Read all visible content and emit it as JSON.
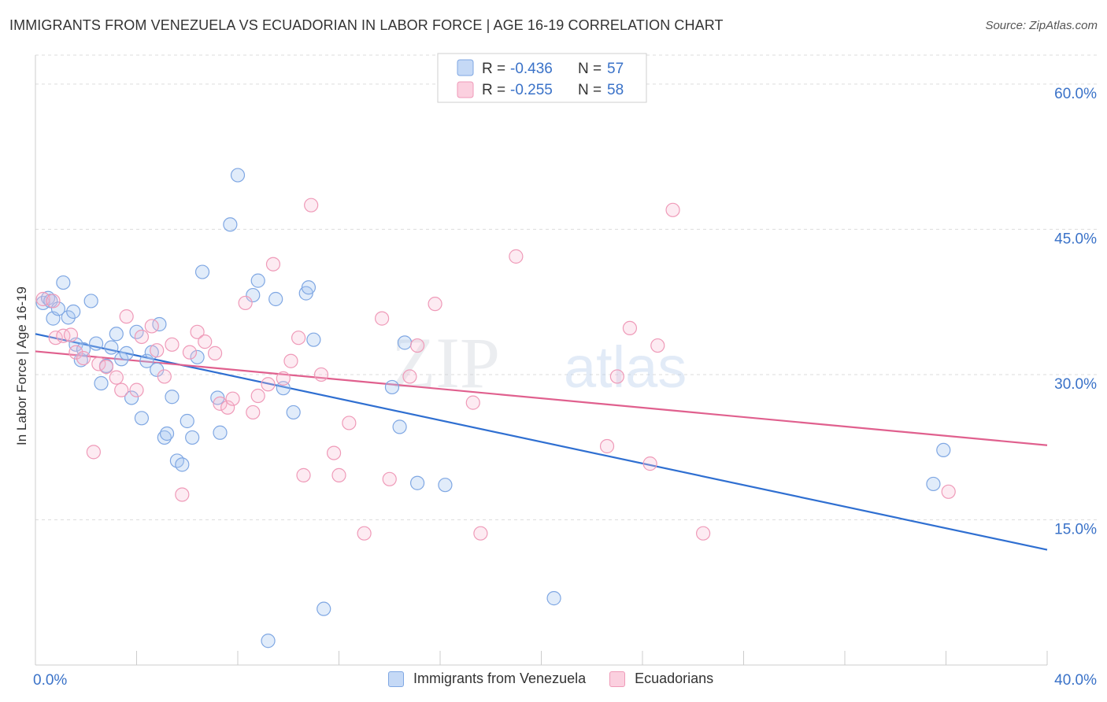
{
  "title": "IMMIGRANTS FROM VENEZUELA VS ECUADORIAN IN LABOR FORCE | AGE 16-19 CORRELATION CHART",
  "source": "Source: ZipAtlas.com",
  "watermark": {
    "zip": "ZIP",
    "atlas": "atlas"
  },
  "colors": {
    "blue": "#6f9fe0",
    "blue_line": "#2f6fd1",
    "pink": "#ee8fb0",
    "pink_line": "#e0608e",
    "tick_text": "#3a72c8",
    "grid": "#dddddd"
  },
  "legend": [
    {
      "r_label": "R = ",
      "r_value": "-0.436",
      "n_label": "N = ",
      "n_value": "57"
    },
    {
      "r_label": "R = ",
      "r_value": "-0.255",
      "n_label": "N = ",
      "n_value": "58"
    }
  ],
  "chart_data": {
    "type": "scatter",
    "title": "IMMIGRANTS FROM VENEZUELA VS ECUADORIAN IN LABOR FORCE | AGE 16-19 CORRELATION CHART",
    "xlabel": "",
    "ylabel": "In Labor Force | Age 16-19",
    "xlim": [
      0,
      40
    ],
    "ylim": [
      0,
      63
    ],
    "x_tick_labels": [
      "0.0%",
      "40.0%"
    ],
    "y_ticks": [
      15,
      30,
      45,
      60
    ],
    "y_tick_labels": [
      "15.0%",
      "30.0%",
      "45.0%",
      "60.0%"
    ],
    "grid": true,
    "legend_position": "top-center",
    "series": [
      {
        "name": "Immigrants from Venezuela",
        "color": "#6f9fe0",
        "trend": {
          "x": [
            0,
            40
          ],
          "y": [
            34.2,
            11.9
          ]
        },
        "points": [
          [
            0.3,
            37.4
          ],
          [
            0.5,
            37.9
          ],
          [
            0.6,
            37.6
          ],
          [
            0.7,
            35.8
          ],
          [
            0.9,
            36.8
          ],
          [
            1.1,
            39.5
          ],
          [
            1.3,
            35.9
          ],
          [
            1.5,
            36.5
          ],
          [
            1.6,
            33.1
          ],
          [
            1.8,
            31.5
          ],
          [
            1.9,
            32.6
          ],
          [
            2.2,
            37.6
          ],
          [
            2.4,
            33.2
          ],
          [
            2.6,
            29.1
          ],
          [
            2.8,
            30.9
          ],
          [
            3.0,
            32.8
          ],
          [
            3.2,
            34.2
          ],
          [
            3.4,
            31.6
          ],
          [
            3.6,
            32.2
          ],
          [
            3.8,
            27.6
          ],
          [
            4.0,
            34.4
          ],
          [
            4.2,
            25.5
          ],
          [
            4.4,
            31.4
          ],
          [
            4.6,
            32.3
          ],
          [
            4.8,
            30.5
          ],
          [
            4.9,
            35.2
          ],
          [
            5.1,
            23.5
          ],
          [
            5.2,
            23.9
          ],
          [
            5.4,
            27.7
          ],
          [
            5.6,
            21.1
          ],
          [
            5.8,
            20.7
          ],
          [
            6.0,
            25.2
          ],
          [
            6.2,
            23.5
          ],
          [
            6.4,
            31.8
          ],
          [
            6.6,
            40.6
          ],
          [
            7.2,
            27.6
          ],
          [
            7.3,
            24.0
          ],
          [
            7.7,
            45.5
          ],
          [
            8.0,
            50.6
          ],
          [
            8.6,
            38.2
          ],
          [
            8.8,
            39.7
          ],
          [
            9.2,
            2.5
          ],
          [
            9.5,
            37.8
          ],
          [
            9.8,
            28.6
          ],
          [
            10.2,
            26.1
          ],
          [
            10.7,
            38.4
          ],
          [
            10.8,
            39.0
          ],
          [
            11.0,
            33.6
          ],
          [
            11.4,
            5.8
          ],
          [
            14.1,
            28.7
          ],
          [
            14.4,
            24.6
          ],
          [
            14.6,
            33.3
          ],
          [
            15.1,
            18.8
          ],
          [
            16.2,
            18.6
          ],
          [
            20.5,
            6.9
          ],
          [
            35.5,
            18.7
          ],
          [
            35.9,
            22.2
          ]
        ]
      },
      {
        "name": "Ecuadorians",
        "color": "#ee8fb0",
        "trend": {
          "x": [
            0,
            40
          ],
          "y": [
            32.4,
            22.7
          ]
        },
        "points": [
          [
            0.3,
            37.8
          ],
          [
            0.7,
            37.6
          ],
          [
            0.8,
            33.8
          ],
          [
            1.1,
            34.0
          ],
          [
            1.4,
            34.1
          ],
          [
            1.6,
            32.3
          ],
          [
            1.9,
            31.7
          ],
          [
            2.3,
            22.0
          ],
          [
            2.5,
            31.1
          ],
          [
            2.8,
            30.8
          ],
          [
            3.2,
            29.7
          ],
          [
            3.4,
            28.4
          ],
          [
            3.6,
            36.0
          ],
          [
            4.0,
            28.4
          ],
          [
            4.2,
            33.9
          ],
          [
            4.6,
            35.0
          ],
          [
            4.8,
            32.5
          ],
          [
            5.1,
            29.8
          ],
          [
            5.4,
            33.1
          ],
          [
            5.8,
            17.6
          ],
          [
            6.1,
            32.3
          ],
          [
            6.4,
            34.4
          ],
          [
            6.7,
            33.4
          ],
          [
            7.1,
            32.2
          ],
          [
            7.3,
            27.0
          ],
          [
            7.6,
            26.6
          ],
          [
            7.8,
            27.5
          ],
          [
            8.3,
            37.4
          ],
          [
            8.6,
            26.1
          ],
          [
            8.8,
            27.8
          ],
          [
            9.2,
            29.0
          ],
          [
            9.4,
            41.4
          ],
          [
            9.8,
            29.6
          ],
          [
            10.1,
            31.4
          ],
          [
            10.4,
            33.8
          ],
          [
            10.6,
            19.6
          ],
          [
            10.9,
            47.5
          ],
          [
            11.3,
            30.0
          ],
          [
            11.8,
            21.9
          ],
          [
            12.0,
            19.6
          ],
          [
            12.4,
            25.0
          ],
          [
            13.0,
            13.6
          ],
          [
            13.7,
            35.8
          ],
          [
            14.0,
            19.2
          ],
          [
            14.8,
            29.8
          ],
          [
            15.1,
            33.0
          ],
          [
            15.8,
            37.3
          ],
          [
            17.3,
            27.1
          ],
          [
            17.6,
            13.6
          ],
          [
            19.0,
            42.2
          ],
          [
            22.6,
            22.6
          ],
          [
            23.0,
            29.8
          ],
          [
            23.5,
            34.8
          ],
          [
            24.3,
            20.8
          ],
          [
            24.6,
            33.0
          ],
          [
            25.2,
            47.0
          ],
          [
            26.4,
            13.6
          ],
          [
            36.1,
            17.9
          ]
        ]
      }
    ]
  },
  "bottom_legend": [
    "Immigrants from Venezuela",
    "Ecuadorians"
  ]
}
